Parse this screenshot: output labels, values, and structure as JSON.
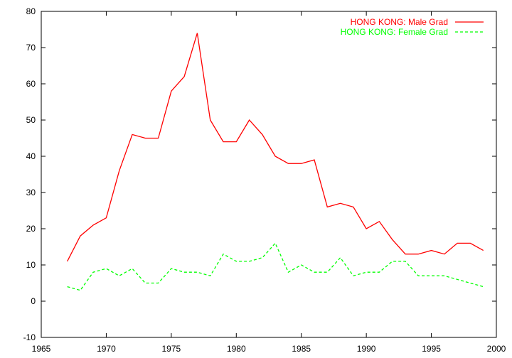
{
  "chart_data": {
    "type": "line",
    "title": "",
    "xlabel": "",
    "ylabel": "",
    "xlim": [
      1965,
      2000
    ],
    "ylim": [
      -10,
      80
    ],
    "xticks": [
      1965,
      1970,
      1975,
      1980,
      1985,
      1990,
      1995,
      2000
    ],
    "yticks": [
      -10,
      0,
      10,
      20,
      30,
      40,
      50,
      60,
      70,
      80
    ],
    "grid": false,
    "legend_position": "top-right",
    "x": [
      1967,
      1968,
      1969,
      1970,
      1971,
      1972,
      1973,
      1974,
      1975,
      1976,
      1977,
      1978,
      1979,
      1980,
      1981,
      1982,
      1983,
      1984,
      1985,
      1986,
      1987,
      1988,
      1989,
      1990,
      1991,
      1992,
      1993,
      1994,
      1995,
      1996,
      1997,
      1998,
      1999
    ],
    "series": [
      {
        "name": "HONG KONG: Male Grad",
        "color": "#ff0000",
        "dash": "solid",
        "values": [
          11,
          18,
          21,
          23,
          36,
          46,
          45,
          45,
          58,
          62,
          74,
          50,
          44,
          44,
          50,
          46,
          40,
          38,
          38,
          39,
          26,
          27,
          26,
          20,
          22,
          17,
          13,
          13,
          14,
          13,
          16,
          16,
          14
        ]
      },
      {
        "name": "HONG KONG: Female Grad",
        "color": "#00ff00",
        "dash": "dashed",
        "values": [
          4,
          3,
          8,
          9,
          7,
          9,
          5,
          5,
          9,
          8,
          8,
          7,
          13,
          11,
          11,
          12,
          16,
          8,
          10,
          8,
          8,
          12,
          7,
          8,
          8,
          11,
          11,
          7,
          7,
          7,
          6,
          5,
          4
        ]
      }
    ]
  }
}
